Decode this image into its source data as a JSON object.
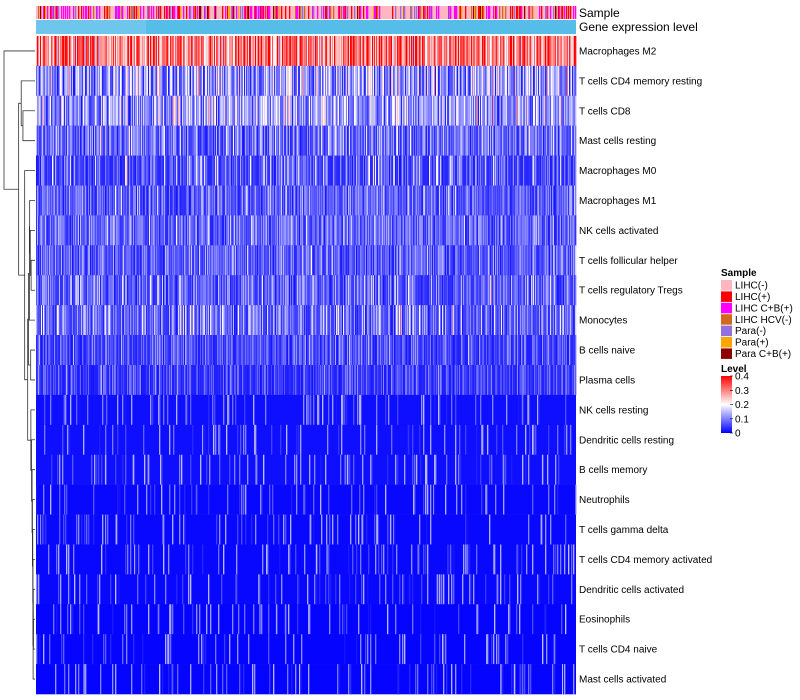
{
  "chart_data": {
    "type": "heatmap",
    "title": "",
    "annotation_tracks": [
      {
        "name": "Sample",
        "label": "Sample"
      },
      {
        "name": "Gene expression level",
        "label": "Gene expression level",
        "color": "#56BDE8"
      }
    ],
    "rows": [
      {
        "label": "Macrophages M2",
        "mean": 0.3,
        "sd": 0.07
      },
      {
        "label": "T cells CD4 memory resting",
        "mean": 0.11,
        "sd": 0.08
      },
      {
        "label": "T cells CD8",
        "mean": 0.12,
        "sd": 0.06
      },
      {
        "label": "Mast cells resting",
        "mean": 0.08,
        "sd": 0.05
      },
      {
        "label": "Macrophages M0",
        "mean": 0.05,
        "sd": 0.07
      },
      {
        "label": "Macrophages M1",
        "mean": 0.07,
        "sd": 0.04
      },
      {
        "label": "NK cells activated",
        "mean": 0.08,
        "sd": 0.04
      },
      {
        "label": "T cells follicular helper",
        "mean": 0.07,
        "sd": 0.04
      },
      {
        "label": "T cells regulatory  Tregs",
        "mean": 0.07,
        "sd": 0.05
      },
      {
        "label": "Monocytes",
        "mean": 0.08,
        "sd": 0.06
      },
      {
        "label": "B cells naive",
        "mean": 0.05,
        "sd": 0.04
      },
      {
        "label": "Plasma cells",
        "mean": 0.04,
        "sd": 0.04
      },
      {
        "label": "NK cells resting",
        "mean": 0.02,
        "sd": 0.03
      },
      {
        "label": "Dendritic cells resting",
        "mean": 0.02,
        "sd": 0.03
      },
      {
        "label": "B cells memory",
        "mean": 0.02,
        "sd": 0.03
      },
      {
        "label": "Neutrophils",
        "mean": 0.01,
        "sd": 0.02
      },
      {
        "label": "T cells gamma delta",
        "mean": 0.01,
        "sd": 0.03
      },
      {
        "label": "T cells CD4 memory activated",
        "mean": 0.01,
        "sd": 0.02
      },
      {
        "label": "Dendritic cells activated",
        "mean": 0.01,
        "sd": 0.02
      },
      {
        "label": "Eosinophils",
        "mean": 0.005,
        "sd": 0.015
      },
      {
        "label": "T cells CD4 naive",
        "mean": 0.005,
        "sd": 0.02
      },
      {
        "label": "Mast cells activated",
        "mean": 0.005,
        "sd": 0.015
      }
    ],
    "n_columns": 540,
    "sample_groups": [
      {
        "label": "LIHC(-)",
        "color": "#FFB6C1",
        "weight": 0.55
      },
      {
        "label": "LIHC(+)",
        "color": "#FF0000",
        "weight": 0.12
      },
      {
        "label": "LIHC C+B(+)",
        "color": "#FF00FF",
        "weight": 0.18
      },
      {
        "label": "LIHC HCV(-)",
        "color": "#D2691E",
        "weight": 0.05
      },
      {
        "label": "Para(-)",
        "color": "#9370DB",
        "weight": 0.05
      },
      {
        "label": "Para(+)",
        "color": "#FFA500",
        "weight": 0.03
      },
      {
        "label": "Para C+B(+)",
        "color": "#8B0000",
        "weight": 0.02
      }
    ],
    "legend_sample": {
      "title": "Sample",
      "placement": "right"
    },
    "legend_level": {
      "title": "Level",
      "ticks": [
        "0.4",
        "0.3",
        "0.2",
        "0.1",
        "0"
      ],
      "tick_values": [
        0.4,
        0.3,
        0.2,
        0.1,
        0
      ],
      "range": [
        0,
        0.4
      ],
      "colors": [
        "#0000FF",
        "#FFFFFF",
        "#FF0000"
      ]
    },
    "dendrogram": {
      "side": "left",
      "merges": [
        [
          -20,
          -21
        ],
        [
          -19,
          1
        ],
        [
          -22,
          2
        ],
        [
          -18,
          3
        ],
        [
          -17,
          4
        ],
        [
          -16,
          5
        ],
        [
          -15,
          6
        ],
        [
          -14,
          7
        ],
        [
          -13,
          8
        ],
        [
          -12,
          -11
        ],
        [
          -9,
          -8
        ],
        [
          -7,
          11
        ],
        [
          -6,
          12
        ],
        [
          -10,
          13
        ],
        [
          10,
          14
        ],
        [
          9,
          15
        ],
        [
          -5,
          16
        ],
        [
          -3,
          -4
        ],
        [
          -2,
          18
        ],
        [
          17,
          19
        ],
        [
          -1,
          20
        ]
      ],
      "heights": [
        0.018,
        0.02,
        0.022,
        0.024,
        0.026,
        0.03,
        0.034,
        0.04,
        0.048,
        0.05,
        0.045,
        0.055,
        0.062,
        0.065,
        0.075,
        0.085,
        0.12,
        0.14,
        0.16,
        0.19,
        0.36
      ]
    }
  }
}
